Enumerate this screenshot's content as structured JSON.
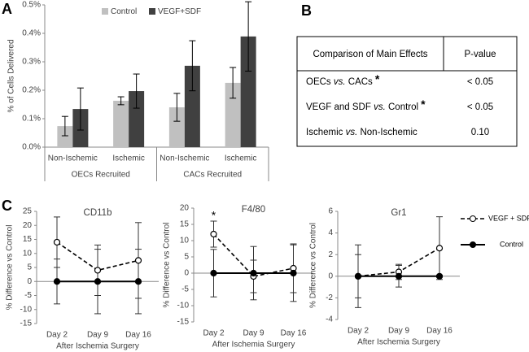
{
  "panel_labels": [
    "A",
    "B",
    "C"
  ],
  "chart_data": [
    {
      "type": "bar",
      "y_label": "% of Cells Delivered",
      "categories": [
        "Non-Ischemic",
        "Ischemic",
        "Non-Ischemic",
        "Ischemic"
      ],
      "groups": [
        "OECs Recruited",
        "CACs Recruited"
      ],
      "series": [
        {
          "name": "Control",
          "color": "#c0c0c0",
          "values": [
            0.074,
            0.163,
            0.14,
            0.226
          ],
          "errors": [
            0.034,
            0.014,
            0.049,
            0.054
          ]
        },
        {
          "name": "VEGF+SDF",
          "color": "#404040",
          "values": [
            0.134,
            0.197,
            0.286,
            0.389
          ],
          "errors": [
            0.074,
            0.06,
            0.088,
            0.122
          ]
        }
      ],
      "ylim": [
        0,
        0.5
      ],
      "yticks": [
        {
          "value": 0,
          "label": "0.0%"
        },
        {
          "value": 0.1,
          "label": "0.1%"
        },
        {
          "value": 0.2,
          "label": "0.2%"
        },
        {
          "value": 0.3,
          "label": "0.3%"
        },
        {
          "value": 0.4,
          "label": "0.4%"
        },
        {
          "value": 0.5,
          "label": "0.5%"
        }
      ],
      "legend": true
    },
    {
      "type": "line",
      "title": "CD11b",
      "x_label": "After Ischemia Surgery",
      "y_label": "% Difference vs Control",
      "categories": [
        "Day 2",
        "Day 9",
        "Day 16"
      ],
      "series": [
        {
          "name": "VEGF + SDF",
          "color": "#000000",
          "dashed": true,
          "marker": "open",
          "values": [
            14,
            4,
            7.5
          ],
          "errors": [
            9,
            9,
            13.5
          ]
        },
        {
          "name": "Control",
          "color": "#000000",
          "dashed": false,
          "marker": "filled",
          "values": [
            0,
            0,
            0
          ],
          "errors": [
            8,
            11.5,
            11.5
          ]
        }
      ],
      "ylim": [
        -15,
        25
      ],
      "yticks": [
        -15,
        -10,
        -5,
        0,
        5,
        10,
        15,
        20,
        25
      ],
      "legend": false
    },
    {
      "type": "line",
      "title": "F4/80",
      "x_label": "After Ischemia Surgery",
      "y_label": "% Difference vs Control",
      "categories": [
        "Day 2",
        "Day 9",
        "Day 16"
      ],
      "series": [
        {
          "name": "VEGF + SDF",
          "color": "#000000",
          "dashed": true,
          "marker": "open",
          "values": [
            12,
            -1,
            1.5
          ],
          "errors": [
            4,
            5,
            7.5
          ]
        },
        {
          "name": "Control",
          "color": "#000000",
          "dashed": false,
          "marker": "filled",
          "values": [
            0,
            0,
            0
          ],
          "errors": [
            7.3,
            8.2,
            8.7
          ]
        }
      ],
      "annotation": "*",
      "ylim": [
        -15,
        20
      ],
      "yticks": [
        -15,
        -10,
        -5,
        0,
        5,
        10,
        15,
        20
      ],
      "legend": false
    },
    {
      "type": "line",
      "title": "Gr1",
      "x_label": "After Ischemia Surgery",
      "y_label": "% Difference vs Control",
      "categories": [
        "Day 2",
        "Day 9",
        "Day 16"
      ],
      "series": [
        {
          "name": "VEGF + SDF",
          "color": "#000000",
          "dashed": true,
          "marker": "open",
          "values": [
            0,
            0.4,
            2.6
          ],
          "errors": [
            2,
            0.7,
            2.9
          ]
        },
        {
          "name": "Control",
          "color": "#000000",
          "dashed": false,
          "marker": "filled",
          "values": [
            0,
            0,
            0
          ],
          "errors": [
            2.9,
            1,
            0.1
          ]
        }
      ],
      "ylim": [
        -4,
        6
      ],
      "yticks": [
        -4,
        -2,
        0,
        2,
        4,
        6
      ],
      "legend": true
    }
  ],
  "table": {
    "header": [
      "Comparison of Main Effects",
      "P-value"
    ],
    "rows": [
      {
        "parts": [
          "OECs ",
          "vs.",
          " CACs"
        ],
        "mark": "*",
        "p": "< 0.05"
      },
      {
        "parts": [
          "VEGF and SDF ",
          "vs.",
          " Control"
        ],
        "mark": "*",
        "p": "< 0.05"
      },
      {
        "parts": [
          "Ischemic ",
          "vs.",
          " Non-Ischemic"
        ],
        "p": "0.10"
      }
    ]
  }
}
